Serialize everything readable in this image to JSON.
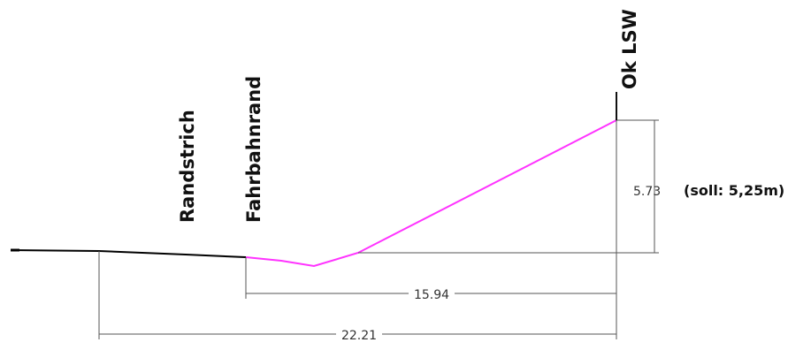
{
  "labels": {
    "randstrich": "Randstrich",
    "fahrbahnrand": "Fahrbahnrand",
    "ok_lsw": "Ok LSW",
    "height_note": "(soll: 5,25m)"
  },
  "dimensions": {
    "height": "5.73",
    "width_short": "15.94",
    "width_long": "22.21"
  },
  "colors": {
    "profile_line": "#ff33ff",
    "road_line": "#000000",
    "dimension_line": "#555555",
    "background": "#ffffff"
  }
}
